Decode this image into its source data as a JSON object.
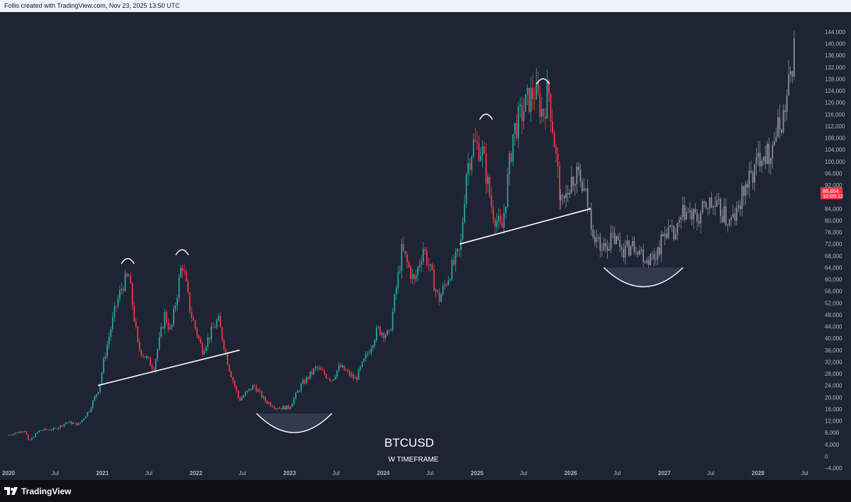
{
  "header": {
    "credit": "Follis created with TradingView.com, Nov 23, 2025 13:50 UTC"
  },
  "footer": {
    "logo_text": "TradingView"
  },
  "overlay": {
    "symbol": "BTCUSD",
    "timeframe": "W TIMEFRAME"
  },
  "price_tag": {
    "price": "86,854",
    "countdown": "10:09:12",
    "color": "#f23645"
  },
  "colors": {
    "background": "#1e2434",
    "up": "#26a69a",
    "down": "#f23645",
    "projection": "#8a8e99",
    "annotation": "#ffffff"
  },
  "chart_data": {
    "type": "candlestick",
    "symbol": "BTCUSD",
    "timeframe": "W",
    "ylim": [
      -4000,
      144000
    ],
    "xlim": [
      "2020-01-01",
      "2028-09-01"
    ],
    "y_ticks": [
      144000,
      140000,
      136000,
      132000,
      128000,
      124000,
      120000,
      116000,
      112000,
      108000,
      104000,
      100000,
      96000,
      92000,
      88000,
      84000,
      80000,
      76000,
      72000,
      68000,
      64000,
      60000,
      56000,
      52000,
      48000,
      44000,
      40000,
      36000,
      32000,
      28000,
      24000,
      20000,
      16000,
      12000,
      8000,
      4000,
      0,
      -4000
    ],
    "y_tick_labels": [
      "144,000",
      "140,000",
      "136,000",
      "132,000",
      "128,000",
      "124,000",
      "120,000",
      "116,000",
      "112,000",
      "108,000",
      "104,000",
      "100,000",
      "96,000",
      "92,000",
      "88,000",
      "84,000",
      "80,000",
      "76,000",
      "72,000",
      "68,000",
      "64,000",
      "60,000",
      "56,000",
      "52,000",
      "48,000",
      "44,000",
      "40,000",
      "36,000",
      "32,000",
      "28,000",
      "24,000",
      "20,000",
      "16,000",
      "12,000",
      "8,000",
      "4,000",
      "0",
      "−4,000"
    ],
    "x_ticks": [
      {
        "date": "2020-01-01",
        "label": "2020",
        "bold": true
      },
      {
        "date": "2020-07-01",
        "label": "Jul",
        "bold": false
      },
      {
        "date": "2021-01-01",
        "label": "2021",
        "bold": true
      },
      {
        "date": "2021-07-01",
        "label": "Jul",
        "bold": false
      },
      {
        "date": "2022-01-01",
        "label": "2022",
        "bold": true
      },
      {
        "date": "2022-07-01",
        "label": "Jul",
        "bold": false
      },
      {
        "date": "2023-01-01",
        "label": "2023",
        "bold": true
      },
      {
        "date": "2023-07-01",
        "label": "Jul",
        "bold": false
      },
      {
        "date": "2024-01-01",
        "label": "2024",
        "bold": true
      },
      {
        "date": "2024-07-01",
        "label": "Jul",
        "bold": false
      },
      {
        "date": "2025-01-01",
        "label": "2025",
        "bold": true
      },
      {
        "date": "2025-07-01",
        "label": "Jul",
        "bold": false
      },
      {
        "date": "2026-01-01",
        "label": "2026",
        "bold": true
      },
      {
        "date": "2026-07-01",
        "label": "Jul",
        "bold": false
      },
      {
        "date": "2027-01-01",
        "label": "2027",
        "bold": true
      },
      {
        "date": "2027-07-01",
        "label": "Jul",
        "bold": false
      },
      {
        "date": "2028-01-01",
        "label": "2028",
        "bold": true
      },
      {
        "date": "2028-07-01",
        "label": "Jul",
        "bold": false
      }
    ],
    "actual_path": [
      [
        "2020-01-01",
        7200
      ],
      [
        "2020-03-05",
        8800
      ],
      [
        "2020-03-19",
        5000
      ],
      [
        "2020-05-01",
        8800
      ],
      [
        "2020-07-01",
        9200
      ],
      [
        "2020-08-15",
        11500
      ],
      [
        "2020-10-01",
        10800
      ],
      [
        "2020-11-10",
        15500
      ],
      [
        "2020-12-20",
        23500
      ],
      [
        "2021-01-10",
        34000
      ],
      [
        "2021-02-20",
        50000
      ],
      [
        "2021-03-20",
        58000
      ],
      [
        "2021-04-14",
        61000
      ],
      [
        "2021-05-20",
        37000
      ],
      [
        "2021-07-20",
        30000
      ],
      [
        "2021-09-01",
        48000
      ],
      [
        "2021-09-25",
        42000
      ],
      [
        "2021-11-08",
        66000
      ],
      [
        "2021-12-10",
        49000
      ],
      [
        "2022-01-25",
        36000
      ],
      [
        "2022-03-28",
        46500
      ],
      [
        "2022-05-10",
        30000
      ],
      [
        "2022-06-18",
        19000
      ],
      [
        "2022-08-15",
        24000
      ],
      [
        "2022-09-25",
        19000
      ],
      [
        "2022-11-10",
        16500
      ],
      [
        "2022-12-30",
        16500
      ],
      [
        "2023-02-15",
        24000
      ],
      [
        "2023-04-14",
        30000
      ],
      [
        "2023-06-15",
        26000
      ],
      [
        "2023-07-15",
        30500
      ],
      [
        "2023-09-15",
        26000
      ],
      [
        "2023-10-30",
        34500
      ],
      [
        "2023-12-10",
        43000
      ],
      [
        "2024-01-25",
        41000
      ],
      [
        "2024-03-14",
        70000
      ],
      [
        "2024-05-01",
        59000
      ],
      [
        "2024-06-05",
        71000
      ],
      [
        "2024-08-05",
        53000
      ],
      [
        "2024-09-20",
        63000
      ],
      [
        "2024-10-28",
        70000
      ],
      [
        "2024-11-20",
        97000
      ],
      [
        "2024-12-17",
        106000
      ],
      [
        "2025-01-20",
        104000
      ],
      [
        "2025-02-28",
        84000
      ],
      [
        "2025-04-07",
        76000
      ],
      [
        "2025-05-22",
        110000
      ],
      [
        "2025-07-14",
        120000
      ],
      [
        "2025-08-14",
        124000
      ],
      [
        "2025-09-15",
        116000
      ],
      [
        "2025-10-06",
        125000
      ],
      [
        "2025-10-25",
        110000
      ],
      [
        "2025-11-23",
        86854
      ]
    ],
    "projection_path": [
      [
        "2025-11-23",
        86854
      ],
      [
        "2025-12-20",
        92000
      ],
      [
        "2026-01-20",
        96000
      ],
      [
        "2026-03-01",
        88000
      ],
      [
        "2026-04-01",
        76000
      ],
      [
        "2026-05-01",
        70000
      ],
      [
        "2026-06-15",
        74000
      ],
      [
        "2026-08-01",
        70000
      ],
      [
        "2026-09-15",
        72000
      ],
      [
        "2026-10-20",
        67000
      ],
      [
        "2026-11-25",
        68000
      ],
      [
        "2027-01-10",
        77000
      ],
      [
        "2027-02-10",
        74000
      ],
      [
        "2027-03-20",
        83000
      ],
      [
        "2027-05-10",
        80000
      ],
      [
        "2027-06-20",
        86000
      ],
      [
        "2027-08-10",
        83000
      ],
      [
        "2027-09-10",
        79000
      ],
      [
        "2027-10-10",
        82000
      ],
      [
        "2027-11-10",
        91000
      ],
      [
        "2027-12-15",
        96000
      ],
      [
        "2028-01-15",
        104000
      ],
      [
        "2028-02-10",
        102000
      ],
      [
        "2028-03-05",
        108000
      ],
      [
        "2028-04-05",
        114000
      ],
      [
        "2028-04-25",
        122000
      ],
      [
        "2028-05-10",
        132000
      ],
      [
        "2028-05-25",
        140000
      ]
    ],
    "annotations": {
      "necklines": [
        {
          "from": [
            "2020-12-15",
            24000
          ],
          "to": [
            "2022-06-20",
            36000
          ]
        },
        {
          "from": [
            "2024-10-25",
            72000
          ],
          "to": [
            "2026-03-20",
            84000
          ]
        }
      ],
      "top_arcs": [
        [
          "2021-04-10",
          66000
        ],
        [
          "2021-11-08",
          69000
        ],
        [
          "2025-02-05",
          115000
        ],
        [
          "2025-09-15",
          127000
        ]
      ],
      "bottom_arcs": [
        {
          "from": [
            "2022-08-25",
            14500
          ],
          "to": [
            "2023-06-15",
            14500
          ],
          "low": 8000
        },
        {
          "from": [
            "2026-05-10",
            64000
          ],
          "to": [
            "2027-03-15",
            64000
          ],
          "low": 57500
        }
      ]
    }
  }
}
